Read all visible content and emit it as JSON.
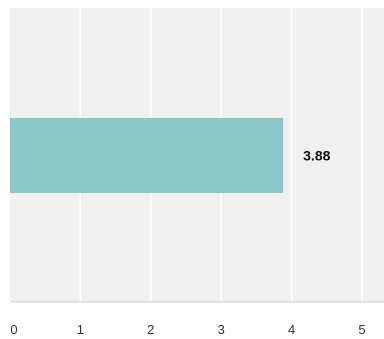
{
  "chart_data": {
    "type": "bar",
    "orientation": "horizontal",
    "title": "",
    "xlabel": "",
    "ylabel": "",
    "categories": [
      ""
    ],
    "values": [
      3.88
    ],
    "data_labels": [
      "3.88"
    ],
    "xlim": [
      0,
      5
    ],
    "x_ticks": [
      0,
      1,
      2,
      3,
      4,
      5
    ],
    "x_tick_labels": [
      "0",
      "1",
      "2",
      "3",
      "4",
      "5"
    ],
    "grid": "vertical",
    "legend": "none"
  },
  "colors": {
    "background": "#f0f0f0",
    "gridline": "#ffffff",
    "bar": "#8cc8c8",
    "axis": "#cccccc",
    "tick_text": "#333333",
    "label_text": "#111111"
  }
}
